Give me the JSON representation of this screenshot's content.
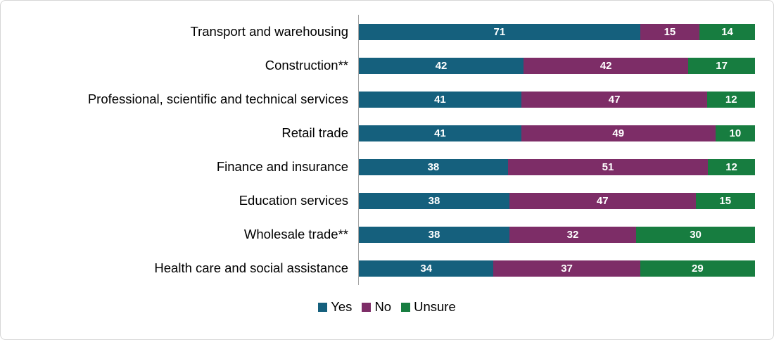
{
  "chart_data": {
    "type": "bar",
    "orientation": "horizontal",
    "stacked": true,
    "title": "",
    "xlabel": "",
    "ylabel": "",
    "xlim": [
      0,
      100
    ],
    "grid": false,
    "legend_position": "bottom",
    "value_labels": true,
    "categories": [
      "Transport and warehousing",
      "Construction**",
      "Professional, scientific and technical services",
      "Retail trade",
      "Finance and insurance",
      "Education services",
      "Wholesale trade**",
      "Health care and social assistance"
    ],
    "series": [
      {
        "name": "Yes",
        "color": "#15607d",
        "values": [
          71,
          42,
          41,
          41,
          38,
          38,
          38,
          34
        ]
      },
      {
        "name": "No",
        "color": "#7d2d67",
        "values": [
          15,
          42,
          47,
          49,
          51,
          47,
          32,
          37
        ]
      },
      {
        "name": "Unsure",
        "color": "#177d40",
        "values": [
          14,
          17,
          12,
          10,
          12,
          15,
          30,
          29
        ]
      }
    ]
  },
  "style": {
    "axis_line_color": "#a6a6a6",
    "value_label_color": "#ffffff",
    "background": "#ffffff",
    "border_color": "#d6d6d6"
  }
}
